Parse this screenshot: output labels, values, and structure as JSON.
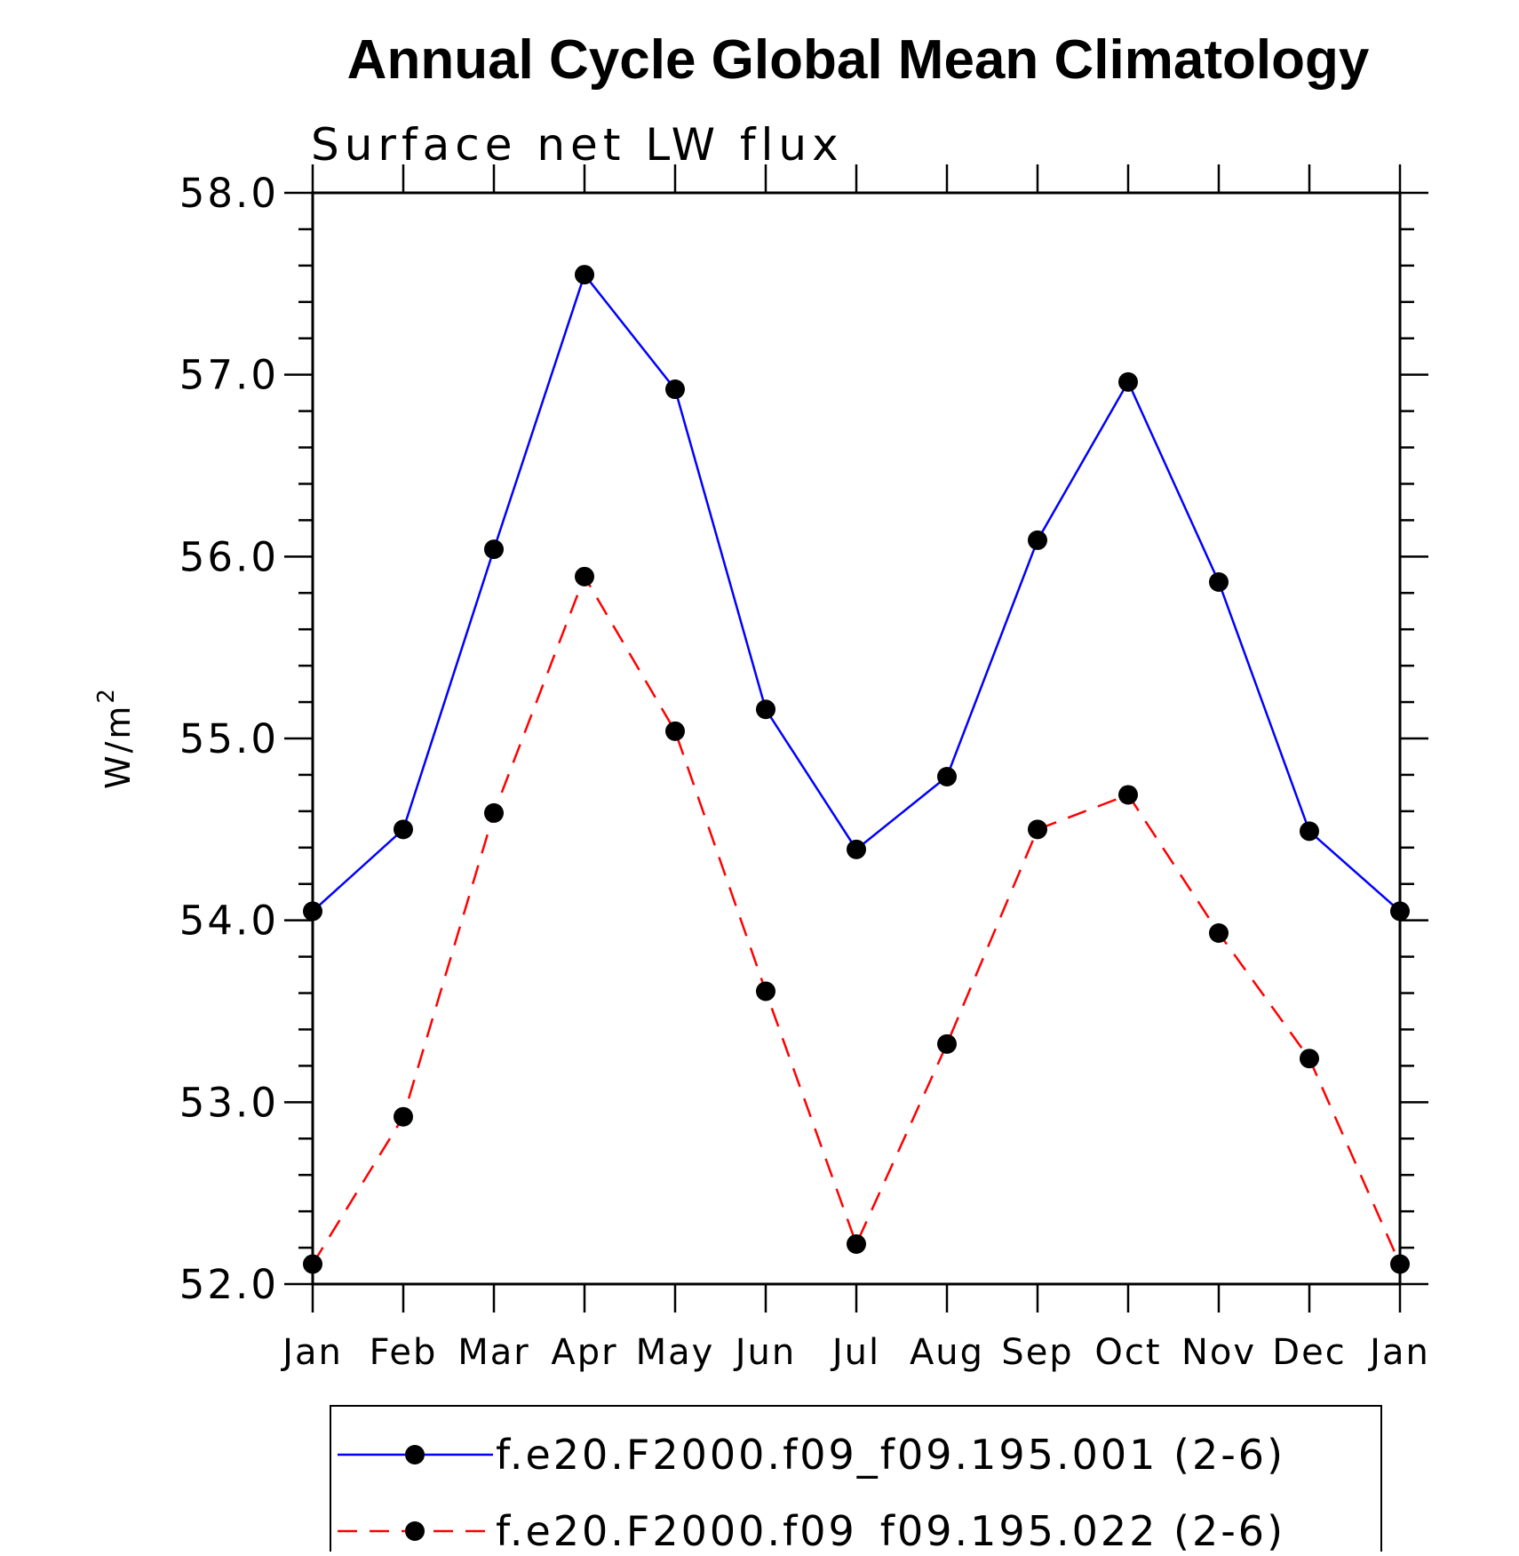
{
  "chart_data": {
    "type": "line",
    "title": "Annual Cycle Global Mean Climatology",
    "subtitle": "Surface net LW flux",
    "ylabel": "W/m",
    "ylabel_superscript": "2",
    "ylim": [
      52.0,
      58.0
    ],
    "yticks": [
      "52.0",
      "53.0",
      "54.0",
      "55.0",
      "56.0",
      "57.0",
      "58.0"
    ],
    "categories": [
      "Jan",
      "Feb",
      "Mar",
      "Apr",
      "May",
      "Jun",
      "Jul",
      "Aug",
      "Sep",
      "Oct",
      "Nov",
      "Dec",
      "Jan"
    ],
    "grid": false,
    "legend_position": "bottom",
    "series": [
      {
        "name": "f.e20.F2000.f09_f09.195.001 (2-6)",
        "color": "#0000ff",
        "line_style": "solid",
        "marker": "filled-circle",
        "values": [
          54.05,
          54.5,
          56.04,
          57.55,
          56.92,
          55.16,
          54.39,
          54.79,
          56.09,
          56.96,
          55.86,
          54.49,
          54.05
        ]
      },
      {
        "name": "f.e20.F2000.f09_f09.195.022 (2-6)",
        "color": "#ff0000",
        "line_style": "dashed",
        "marker": "filled-circle",
        "values": [
          52.11,
          52.92,
          54.59,
          55.89,
          55.04,
          53.61,
          52.22,
          53.32,
          54.5,
          54.69,
          53.93,
          53.24,
          52.11
        ]
      }
    ]
  }
}
